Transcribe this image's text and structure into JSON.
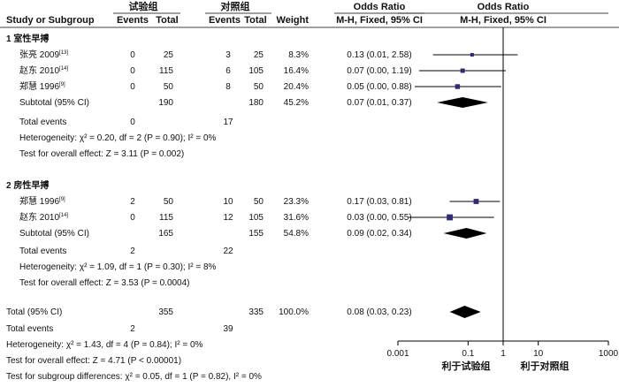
{
  "header": {
    "group_exp": "试验组",
    "group_ctl": "对照组",
    "study_col": "Study or Subgroup",
    "events_col": "Events",
    "total_col": "Total",
    "weight_col": "Weight",
    "or_col": "Odds Ratio",
    "or_method": "M-H, Fixed, 95% CI",
    "plot_title": "Odds Ratio",
    "plot_method": "M-H, Fixed, 95% CI"
  },
  "colors": {
    "square": "#2e2a7a",
    "diamond": "#000000",
    "line": "#000000"
  },
  "chart_data": {
    "type": "forest",
    "x_scale": "log",
    "xlim": [
      0.001,
      1000
    ],
    "null_value": 1,
    "x_ticks": [
      "0.001",
      "0.1",
      "1",
      "10",
      "1000"
    ],
    "favours_left": "利于试验组",
    "favours_right": "利于对照组",
    "subgroups": [
      {
        "label": "1 室性早搏",
        "studies": [
          {
            "name": "张亮 2009",
            "ref": "[13]",
            "e_events": "0",
            "e_total": "25",
            "c_events": "3",
            "c_total": "25",
            "weight": "8.3%",
            "ci_text": "0.13 (0.01, 2.58)",
            "or": 0.13,
            "lo": 0.01,
            "hi": 2.58
          },
          {
            "name": "赵东 2010",
            "ref": "[14]",
            "e_events": "0",
            "e_total": "115",
            "c_events": "6",
            "c_total": "105",
            "weight": "16.4%",
            "ci_text": "0.07 (0.00, 1.19)",
            "or": 0.07,
            "lo": 0.004,
            "hi": 1.19
          },
          {
            "name": "郑慧 1996",
            "ref": "[9]",
            "e_events": "0",
            "e_total": "50",
            "c_events": "8",
            "c_total": "50",
            "weight": "20.4%",
            "ci_text": "0.05 (0.00, 0.88)",
            "or": 0.05,
            "lo": 0.003,
            "hi": 0.88
          }
        ],
        "subtotal": {
          "label": "Subtotal (95% CI)",
          "e_total": "190",
          "c_total": "180",
          "weight": "45.2%",
          "ci_text": "0.07 (0.01, 0.37)",
          "or": 0.07,
          "lo": 0.013,
          "hi": 0.37
        },
        "total_events_label": "Total events",
        "e_events_total": "0",
        "c_events_total": "17",
        "heterogeneity": "Heterogeneity: χ² = 0.20, df = 2 (P = 0.90); I² = 0%",
        "overall_test": "Test for overall effect: Z = 3.11 (P = 0.002)"
      },
      {
        "label": "2 房性早搏",
        "studies": [
          {
            "name": "郑慧 1996",
            "ref": "[9]",
            "e_events": "2",
            "e_total": "50",
            "c_events": "10",
            "c_total": "50",
            "weight": "23.3%",
            "ci_text": "0.17 (0.03, 0.81)",
            "or": 0.17,
            "lo": 0.03,
            "hi": 0.81
          },
          {
            "name": "赵东 2010",
            "ref": "[14]",
            "e_events": "0",
            "e_total": "115",
            "c_events": "12",
            "c_total": "105",
            "weight": "31.6%",
            "ci_text": "0.03 (0.00, 0.55)",
            "or": 0.03,
            "lo": 0.002,
            "hi": 0.55
          }
        ],
        "subtotal": {
          "label": "Subtotal (95% CI)",
          "e_total": "165",
          "c_total": "155",
          "weight": "54.8%",
          "ci_text": "0.09 (0.02, 0.34)",
          "or": 0.09,
          "lo": 0.02,
          "hi": 0.34
        },
        "total_events_label": "Total events",
        "e_events_total": "2",
        "c_events_total": "22",
        "heterogeneity": "Heterogeneity: χ² = 1.09, df = 1 (P = 0.30); I² = 8%",
        "overall_test": "Test for overall effect: Z = 3.53 (P = 0.0004)"
      }
    ],
    "total": {
      "label": "Total (95% CI)",
      "e_total": "355",
      "c_total": "335",
      "weight": "100.0%",
      "ci_text": "0.08 (0.03, 0.23)",
      "or": 0.08,
      "lo": 0.03,
      "hi": 0.23
    },
    "total_events": {
      "label": "Total events",
      "e": "2",
      "c": "39"
    },
    "footer": {
      "heterogeneity": "Heterogeneity: χ² = 1.43, df = 4 (P = 0.84); I² = 0%",
      "overall_test": "Test for overall effect: Z = 4.71 (P < 0.00001)",
      "subgroup_test": "Test for subgroup differences: χ² = 0.05, df = 1 (P = 0.82), I² = 0%"
    }
  }
}
